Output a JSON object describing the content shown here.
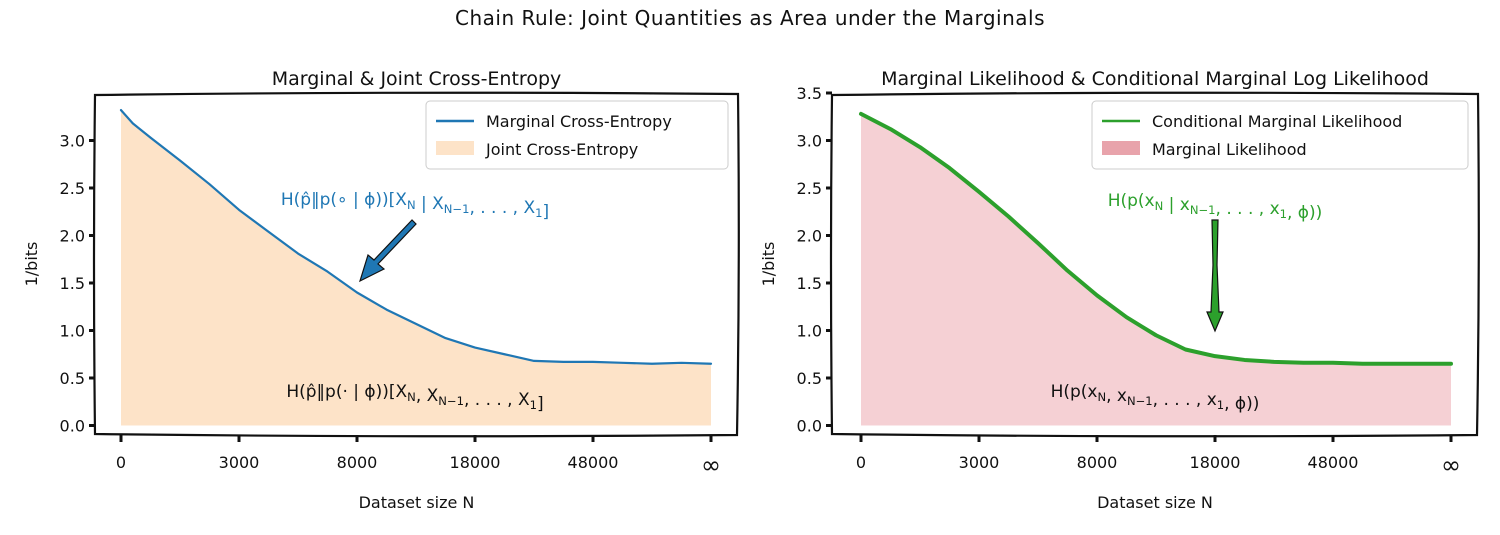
{
  "suptitle": "Chain Rule: Joint Quantities as Area under the Marginals",
  "colors": {
    "blue": "#1f77b4",
    "orange_fill": "#fde3c8",
    "green": "#2ca02c",
    "red_fill": "#f5d0d4",
    "red_legend": "#e8a3ab"
  },
  "chart_data": [
    {
      "type": "area",
      "title": "Marginal & Joint Cross-Entropy",
      "xlabel": "Dataset size N",
      "ylabel": "1/bits",
      "x_tick_labels": [
        "0",
        "3000",
        "8000",
        "18000",
        "48000",
        "∞"
      ],
      "x_tick_positions": [
        0,
        1,
        2,
        3,
        4,
        5
      ],
      "ylim": [
        -0.1,
        3.5
      ],
      "y_ticks": [
        0.0,
        0.5,
        1.0,
        1.5,
        2.0,
        2.5,
        3.0
      ],
      "y_tick_labels": [
        "0.0",
        "0.5",
        "1.0",
        "1.5",
        "2.0",
        "2.5",
        "3.0"
      ],
      "legend_position": "top-right",
      "series": [
        {
          "name": "Marginal Cross-Entropy",
          "kind": "line",
          "color": "#1f77b4",
          "x": [
            0,
            0.1,
            0.25,
            0.5,
            0.75,
            1.0,
            1.25,
            1.5,
            1.75,
            2.0,
            2.25,
            2.5,
            2.75,
            3.0,
            3.25,
            3.5,
            3.75,
            4.0,
            4.25,
            4.5,
            4.75,
            5.0
          ],
          "y": [
            3.32,
            3.18,
            3.03,
            2.79,
            2.54,
            2.27,
            2.04,
            1.81,
            1.62,
            1.4,
            1.22,
            1.07,
            0.92,
            0.82,
            0.75,
            0.68,
            0.67,
            0.67,
            0.66,
            0.65,
            0.66,
            0.65
          ]
        },
        {
          "name": "Joint Cross-Entropy",
          "kind": "fill",
          "color": "#fde3c8"
        }
      ],
      "annotations": [
        {
          "text": "H(p̂‖p(∘ | ϕ))[X",
          "sub": "N",
          "rest": " | X",
          "sub2": "N−1",
          "tail": ", . . . , X",
          "sub3": "1",
          "end": "]",
          "color": "#1f77b4"
        },
        {
          "text": "H(p̂‖p(· | ϕ))[X",
          "sub": "N",
          "rest": ", X",
          "sub2": "N−1",
          "tail": ", . . . , X",
          "sub3": "1",
          "end": "]",
          "color": "#111111"
        }
      ]
    },
    {
      "type": "area",
      "title": "Marginal Likelihood & Conditional Marginal Log Likelihood",
      "xlabel": "Dataset size N",
      "ylabel": "1/bits",
      "x_tick_labels": [
        "0",
        "3000",
        "8000",
        "18000",
        "48000",
        "∞"
      ],
      "x_tick_positions": [
        0,
        1,
        2,
        3,
        4,
        5
      ],
      "ylim": [
        -0.1,
        3.5
      ],
      "y_ticks": [
        0.0,
        0.5,
        1.0,
        1.5,
        2.0,
        2.5,
        3.0,
        3.5
      ],
      "y_tick_labels": [
        "0.0",
        "0.5",
        "1.0",
        "1.5",
        "2.0",
        "2.5",
        "3.0",
        "3.5"
      ],
      "legend_position": "top-right",
      "series": [
        {
          "name": "Conditional Marginal Likelihood",
          "kind": "line",
          "color": "#2ca02c",
          "x": [
            0,
            0.25,
            0.5,
            0.75,
            1.0,
            1.25,
            1.5,
            1.75,
            2.0,
            2.25,
            2.5,
            2.75,
            3.0,
            3.25,
            3.5,
            3.75,
            4.0,
            4.25,
            4.5,
            4.75,
            5.0
          ],
          "y": [
            3.28,
            3.12,
            2.93,
            2.71,
            2.46,
            2.2,
            1.92,
            1.63,
            1.37,
            1.14,
            0.95,
            0.8,
            0.73,
            0.69,
            0.67,
            0.66,
            0.66,
            0.65,
            0.65,
            0.65,
            0.65
          ]
        },
        {
          "name": "Marginal Likelihood",
          "kind": "fill",
          "color": "#f5d0d4"
        }
      ],
      "annotations": [
        {
          "text": "H(p(x",
          "sub": "N",
          "rest": " | x",
          "sub2": "N−1",
          "tail": ", . . . , x",
          "sub3": "1",
          "end": ", ϕ))",
          "color": "#2ca02c"
        },
        {
          "text": "H(p(x",
          "sub": "N",
          "rest": ", x",
          "sub2": "N−1",
          "tail": ", . . . , x",
          "sub3": "1",
          "end": ", ϕ))",
          "color": "#111111"
        }
      ]
    }
  ]
}
